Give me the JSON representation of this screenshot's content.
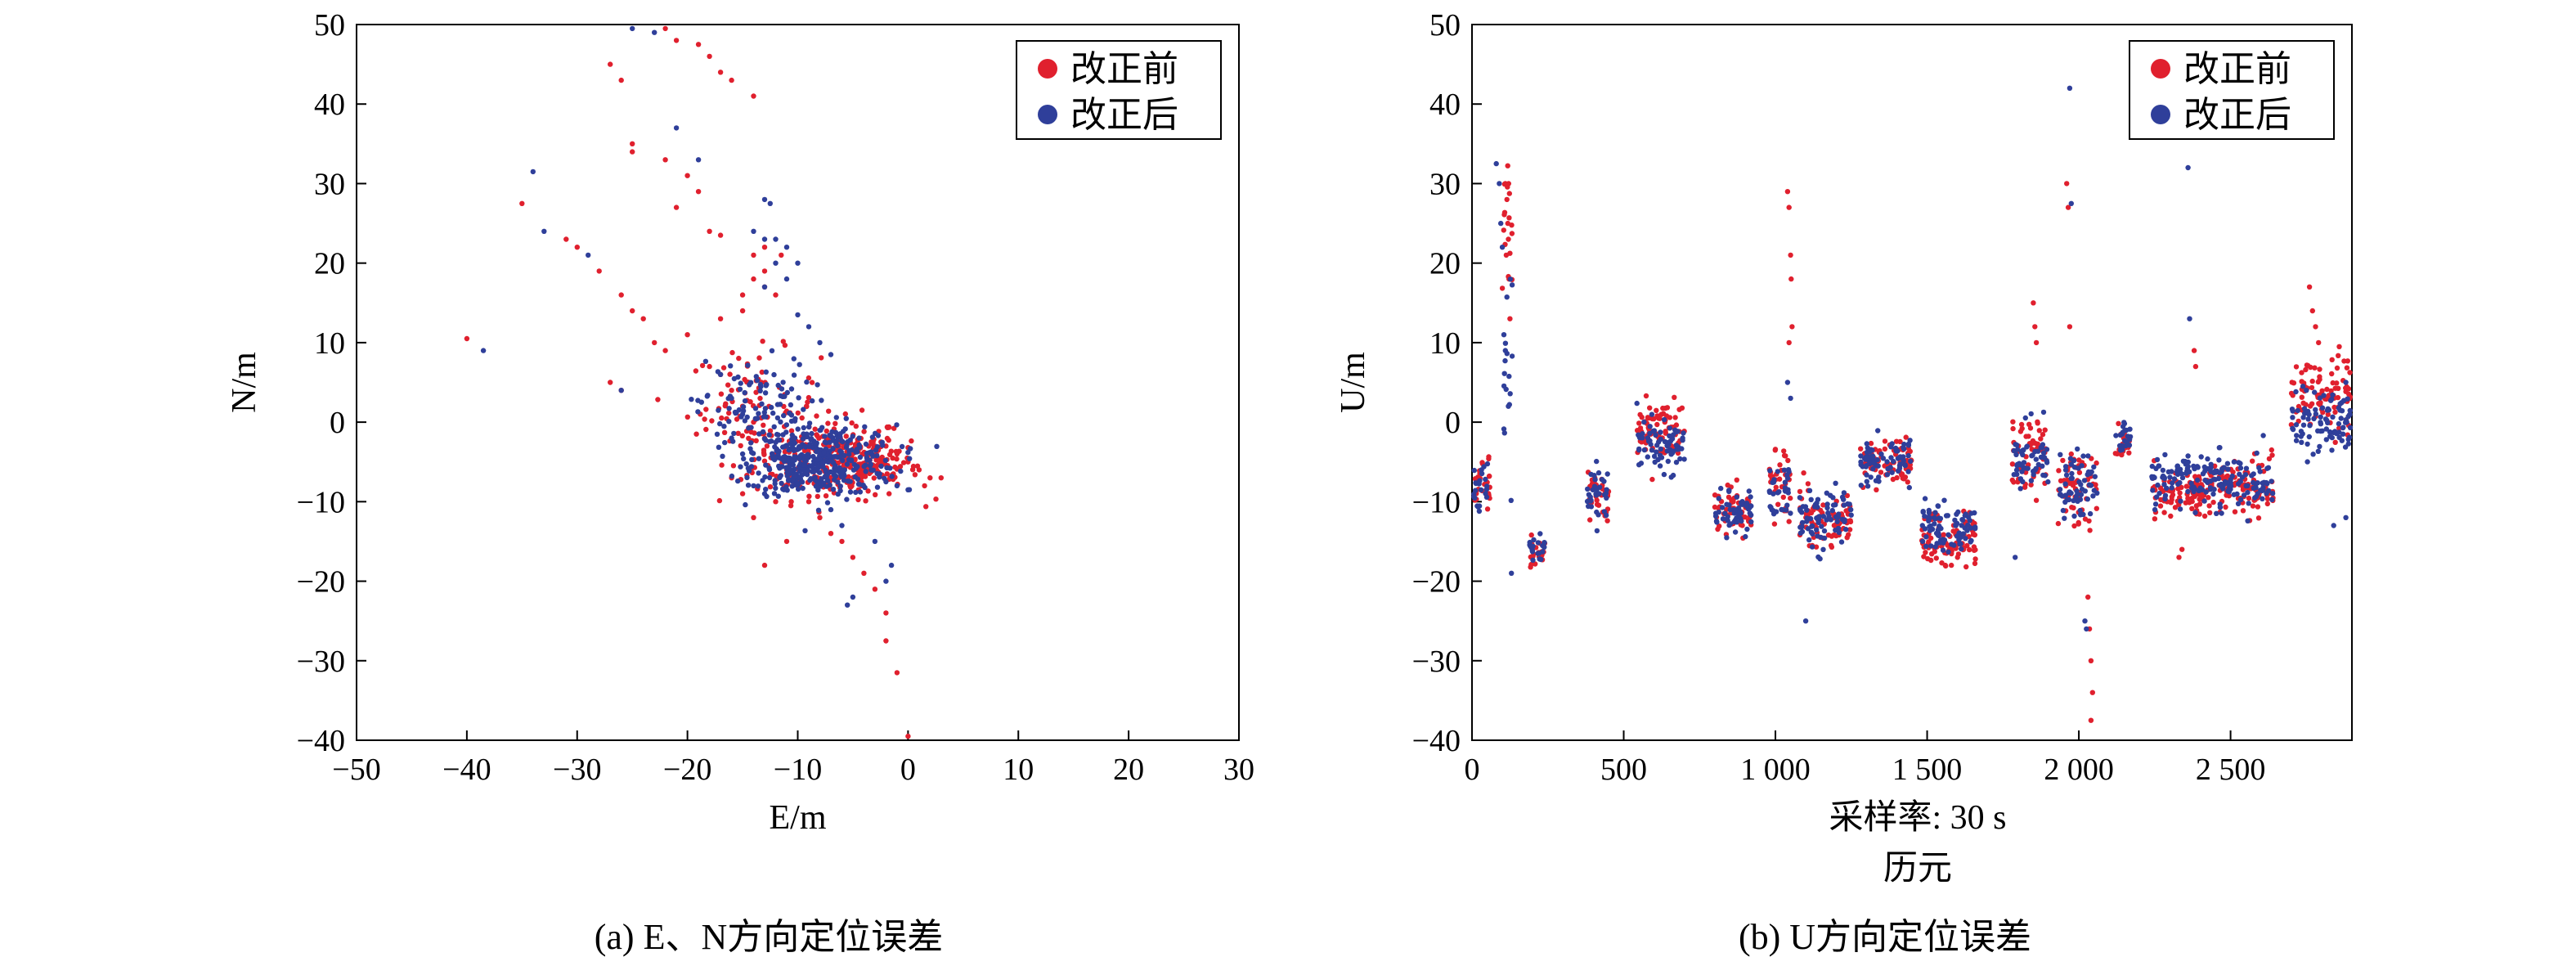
{
  "colors": {
    "before": "#e0202e",
    "after": "#2f3f9a"
  },
  "chart_data": [
    {
      "type": "scatter",
      "caption": "(a) E、N方向定位误差",
      "xlabel": "E/m",
      "ylabel": "N/m",
      "xlim": [
        -50,
        30
      ],
      "ylim": [
        -40,
        50
      ],
      "xticks": [
        -50,
        -40,
        -30,
        -20,
        -10,
        0,
        10,
        20,
        30
      ],
      "xtick_labels": [
        "−50",
        "−40",
        "−30",
        "−20",
        "−10",
        "0",
        "10",
        "20",
        "30"
      ],
      "yticks": [
        -40,
        -30,
        -20,
        -10,
        0,
        10,
        20,
        30,
        40,
        50
      ],
      "ytick_labels": [
        "−40",
        "−30",
        "−20",
        "−10",
        "0",
        "10",
        "20",
        "30",
        "40",
        "50"
      ],
      "legend": {
        "position": "top-right",
        "entries": [
          "改正前",
          "改正后"
        ]
      },
      "series": [
        {
          "name": "改正前",
          "points": [
            [
              -22,
              49.5
            ],
            [
              -21,
              48
            ],
            [
              -19,
              47.5
            ],
            [
              -18,
              46
            ],
            [
              -17,
              44
            ],
            [
              -16,
              43
            ],
            [
              -14,
              41
            ],
            [
              -27,
              45
            ],
            [
              -26,
              43
            ],
            [
              -25,
              35
            ],
            [
              -25,
              34
            ],
            [
              -22,
              33
            ],
            [
              -20,
              31
            ],
            [
              -19,
              29
            ],
            [
              -21,
              27
            ],
            [
              -18,
              24
            ],
            [
              -17,
              23.5
            ],
            [
              -13,
              22
            ],
            [
              -14,
              21
            ],
            [
              -11.5,
              21
            ],
            [
              -13,
              19
            ],
            [
              -35,
              27.5
            ],
            [
              -31,
              23
            ],
            [
              -30,
              22
            ],
            [
              -28,
              19
            ],
            [
              -26,
              16
            ],
            [
              -25,
              14
            ],
            [
              -24,
              13
            ],
            [
              -40,
              10.5
            ],
            [
              -27,
              5
            ],
            [
              -26,
              4
            ],
            [
              -23,
              10
            ],
            [
              -22,
              9
            ],
            [
              -20,
              11
            ],
            [
              -17,
              13
            ],
            [
              -15,
              16
            ],
            [
              -14,
              18
            ],
            [
              -15,
              14
            ],
            [
              -13,
              17
            ],
            [
              -12,
              16
            ],
            [
              -18,
              7
            ],
            [
              -17,
              6
            ],
            [
              -16,
              4
            ],
            [
              -15,
              2
            ],
            [
              -14,
              0
            ],
            [
              -13,
              -2
            ],
            [
              -12,
              -4
            ],
            [
              -11,
              -6
            ],
            [
              -10,
              -8
            ],
            [
              -9,
              -10
            ],
            [
              -8,
              -12
            ],
            [
              -7,
              -14
            ],
            [
              -6,
              -15
            ],
            [
              -5,
              -17
            ],
            [
              -4,
              -19
            ],
            [
              -3,
              -21
            ],
            [
              -2,
              -24
            ],
            [
              -2,
              -27.5
            ],
            [
              -1,
              -31.5
            ],
            [
              0,
              -39.5
            ],
            [
              0.5,
              -40
            ],
            [
              -13,
              -18
            ],
            [
              -11,
              -15
            ],
            [
              -14,
              -12
            ],
            [
              -15,
              -9
            ],
            [
              -16,
              -7
            ],
            [
              -12,
              -10
            ],
            [
              1,
              -6
            ],
            [
              2,
              -7
            ],
            [
              3,
              -7
            ],
            [
              0,
              -5
            ],
            [
              -1,
              -4
            ],
            [
              -2,
              -3
            ],
            [
              -3,
              -3
            ],
            [
              -4,
              -4
            ],
            [
              -5,
              -5
            ],
            [
              -6,
              -6
            ],
            [
              -7,
              -7
            ],
            [
              -8,
              -8
            ],
            [
              1.5,
              -8
            ]
          ],
          "cloud": [
            {
              "center": [
                -7,
                -4.5
              ],
              "spread": [
                3.5,
                2.6
              ],
              "count": 220
            },
            {
              "center": [
                -14,
                2
              ],
              "spread": [
                3.0,
                3.5
              ],
              "count": 90
            },
            {
              "center": [
                -4,
                -6
              ],
              "spread": [
                2.5,
                1.8
              ],
              "count": 90
            }
          ]
        },
        {
          "name": "改正后",
          "points": [
            [
              -25,
              49.5
            ],
            [
              -23,
              49
            ],
            [
              -21,
              37
            ],
            [
              -19,
              33
            ],
            [
              -34,
              31.5
            ],
            [
              -33,
              24
            ],
            [
              -29,
              21
            ],
            [
              -38.5,
              9
            ],
            [
              -26,
              4
            ],
            [
              -13,
              28
            ],
            [
              -12.5,
              27.5
            ],
            [
              -14,
              24
            ],
            [
              -13,
              23
            ],
            [
              -12,
              23
            ],
            [
              -11,
              22
            ],
            [
              -12,
              20
            ],
            [
              -10,
              20
            ],
            [
              -11,
              18
            ],
            [
              -13,
              17
            ],
            [
              -10,
              13.5
            ],
            [
              -9,
              12
            ],
            [
              -8,
              10
            ],
            [
              -7,
              8.5
            ],
            [
              -17,
              6
            ],
            [
              -16,
              3
            ],
            [
              -15,
              1
            ],
            [
              -5,
              -22
            ],
            [
              -5.5,
              -23
            ],
            [
              -1.5,
              -18
            ],
            [
              -2,
              -20
            ],
            [
              -3,
              -15
            ],
            [
              -6,
              -13
            ],
            [
              -7,
              -11
            ],
            [
              -14,
              -8
            ],
            [
              -13,
              -9
            ],
            [
              -1,
              -8
            ],
            [
              0,
              -8.5
            ],
            [
              -2,
              -7.5
            ],
            [
              -15,
              -4
            ],
            [
              -16,
              -2
            ]
          ],
          "cloud": [
            {
              "center": [
                -7.5,
                -4.8
              ],
              "spread": [
                3.2,
                2.2
              ],
              "count": 330
            },
            {
              "center": [
                -14,
                1.5
              ],
              "spread": [
                2.6,
                3.2
              ],
              "count": 110
            },
            {
              "center": [
                -10,
                -6
              ],
              "spread": [
                2.0,
                1.5
              ],
              "count": 80
            }
          ]
        }
      ]
    },
    {
      "type": "scatter",
      "caption": "(b) U方向定位误差",
      "xlabel": "采样率: 30 s",
      "xlabel2": "历元",
      "ylabel": "U/m",
      "xlim": [
        0,
        2900
      ],
      "ylim": [
        -40,
        50
      ],
      "xticks": [
        0,
        500,
        1000,
        1500,
        2000,
        2500
      ],
      "xtick_labels": [
        "0",
        "500",
        "1 000",
        "1 500",
        "2 000",
        "2 500"
      ],
      "yticks": [
        -40,
        -30,
        -20,
        -10,
        0,
        10,
        20,
        30,
        40,
        50
      ],
      "ytick_labels": [
        "−40",
        "−30",
        "−20",
        "−10",
        "0",
        "10",
        "20",
        "30",
        "40",
        "50"
      ],
      "legend": {
        "position": "top-right",
        "entries": [
          "改正前",
          "改正后"
        ]
      },
      "segments": [
        {
          "x": [
            0,
            60
          ],
          "y_before": -8,
          "y_after": -8,
          "amp": 3
        },
        {
          "x": [
            100,
            135
          ],
          "y_before": 22,
          "y_after": 5,
          "amp": 9
        },
        {
          "x": [
            190,
            240
          ],
          "y_before": -16,
          "y_after": -16,
          "amp": 2
        },
        {
          "x": [
            380,
            450
          ],
          "y_before": -9,
          "y_after": -9,
          "amp": 3
        },
        {
          "x": [
            540,
            700
          ],
          "y_before": -1,
          "y_after": -3,
          "amp": 3
        },
        {
          "x": [
            800,
            920
          ],
          "y_before": -11,
          "y_after": -11,
          "amp": 2.5
        },
        {
          "x": [
            980,
            1050
          ],
          "y_before": -7,
          "y_after": -8,
          "amp": 4
        },
        {
          "x": [
            1080,
            1250
          ],
          "y_before": -12,
          "y_after": -12,
          "amp": 3
        },
        {
          "x": [
            1280,
            1450
          ],
          "y_before": -5,
          "y_after": -5,
          "amp": 2.5
        },
        {
          "x": [
            1480,
            1660
          ],
          "y_before": -15,
          "y_after": -13,
          "amp": 3
        },
        {
          "x": [
            1780,
            1900
          ],
          "y_before": -4,
          "y_after": -5,
          "amp": 4
        },
        {
          "x": [
            1930,
            2060
          ],
          "y_before": -8,
          "y_after": -8,
          "amp": 4
        },
        {
          "x": [
            2120,
            2170
          ],
          "y_before": -3,
          "y_after": -2,
          "amp": 2
        },
        {
          "x": [
            2240,
            2440
          ],
          "y_before": -9,
          "y_after": -7,
          "amp": 3
        },
        {
          "x": [
            2440,
            2640
          ],
          "y_before": -8,
          "y_after": -8,
          "amp": 3
        },
        {
          "x": [
            2700,
            2900
          ],
          "y_before": 4,
          "y_after": 0,
          "amp": 4
        }
      ],
      "points_before": [
        [
          110,
          30
        ],
        [
          115,
          28
        ],
        [
          118,
          25
        ],
        [
          120,
          23
        ],
        [
          113,
          21
        ],
        [
          122,
          18
        ],
        [
          125,
          13
        ],
        [
          1040,
          29
        ],
        [
          1045,
          27
        ],
        [
          1050,
          21
        ],
        [
          1052,
          18
        ],
        [
          1055,
          12
        ],
        [
          1045,
          10
        ],
        [
          1850,
          15
        ],
        [
          1855,
          12
        ],
        [
          1860,
          10
        ],
        [
          1960,
          30
        ],
        [
          1965,
          27
        ],
        [
          1970,
          12
        ],
        [
          2030,
          -22
        ],
        [
          2035,
          -26
        ],
        [
          2040,
          -30
        ],
        [
          2045,
          -34
        ],
        [
          2040,
          -37.5
        ],
        [
          2380,
          9
        ],
        [
          2385,
          7
        ],
        [
          2760,
          17
        ],
        [
          2770,
          14
        ],
        [
          2780,
          12
        ],
        [
          2790,
          10
        ],
        [
          1560,
          -18
        ],
        [
          1580,
          -18
        ],
        [
          1600,
          -17
        ],
        [
          1620,
          -16
        ],
        [
          2330,
          -17
        ],
        [
          2340,
          -16
        ]
      ],
      "points_after": [
        [
          80,
          32.5
        ],
        [
          90,
          30
        ],
        [
          95,
          25
        ],
        [
          100,
          22
        ],
        [
          105,
          11
        ],
        [
          110,
          9
        ],
        [
          120,
          2
        ],
        [
          130,
          -19
        ],
        [
          1970,
          42
        ],
        [
          1975,
          27.5
        ],
        [
          2360,
          32
        ],
        [
          2365,
          13
        ],
        [
          1100,
          -25
        ],
        [
          1040,
          5
        ],
        [
          1050,
          3
        ],
        [
          2020,
          -25
        ],
        [
          2025,
          -26
        ],
        [
          1790,
          -17
        ],
        [
          2750,
          4
        ],
        [
          2840,
          -13
        ],
        [
          2880,
          -12
        ],
        [
          2880,
          5
        ]
      ]
    }
  ]
}
